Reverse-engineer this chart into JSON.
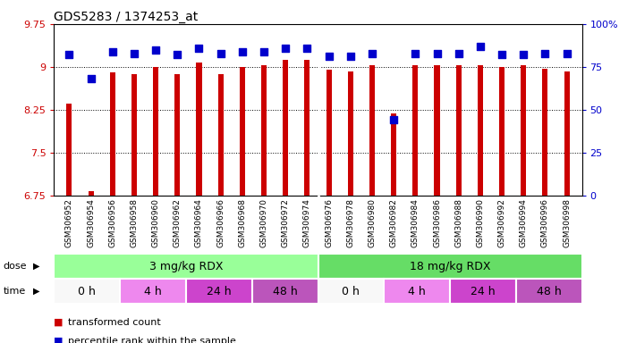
{
  "title": "GDS5283 / 1374253_at",
  "samples": [
    "GSM306952",
    "GSM306954",
    "GSM306956",
    "GSM306958",
    "GSM306960",
    "GSM306962",
    "GSM306964",
    "GSM306966",
    "GSM306968",
    "GSM306970",
    "GSM306972",
    "GSM306974",
    "GSM306976",
    "GSM306978",
    "GSM306980",
    "GSM306982",
    "GSM306984",
    "GSM306986",
    "GSM306988",
    "GSM306990",
    "GSM306992",
    "GSM306994",
    "GSM306996",
    "GSM306998"
  ],
  "transformed_count": [
    8.35,
    6.82,
    8.9,
    8.88,
    9.0,
    8.88,
    9.08,
    8.88,
    9.0,
    9.03,
    9.12,
    9.12,
    8.95,
    8.92,
    9.03,
    8.18,
    9.03,
    9.03,
    9.03,
    9.03,
    9.0,
    9.03,
    8.97,
    8.92
  ],
  "percentile_rank": [
    82,
    68,
    84,
    83,
    85,
    82,
    86,
    83,
    84,
    84,
    86,
    86,
    81,
    81,
    83,
    44,
    83,
    83,
    83,
    87,
    82,
    82,
    83,
    83
  ],
  "ylim_left": [
    6.75,
    9.75
  ],
  "ylim_right": [
    0,
    100
  ],
  "yticks_left": [
    6.75,
    7.5,
    8.25,
    9.0,
    9.75
  ],
  "ytick_labels_left": [
    "6.75",
    "7.5",
    "8.25",
    "9",
    "9.75"
  ],
  "yticks_right": [
    0,
    25,
    50,
    75,
    100
  ],
  "ytick_labels_right": [
    "0",
    "25",
    "50",
    "75",
    "100%"
  ],
  "bar_color": "#cc0000",
  "dot_color": "#0000cc",
  "background_plot": "#ffffff",
  "background_fig": "#ffffff",
  "label_band_color": "#d3d3d3",
  "dose_groups": [
    {
      "label": "3 mg/kg RDX",
      "start": 0,
      "end": 12,
      "color": "#99ff99"
    },
    {
      "label": "18 mg/kg RDX",
      "start": 12,
      "end": 24,
      "color": "#66dd66"
    }
  ],
  "time_groups": [
    {
      "label": "0 h",
      "start": 0,
      "end": 3,
      "color": "#f8f8f8"
    },
    {
      "label": "4 h",
      "start": 3,
      "end": 6,
      "color": "#ee88ee"
    },
    {
      "label": "24 h",
      "start": 6,
      "end": 9,
      "color": "#cc44cc"
    },
    {
      "label": "48 h",
      "start": 9,
      "end": 12,
      "color": "#bb55bb"
    },
    {
      "label": "0 h",
      "start": 12,
      "end": 15,
      "color": "#f8f8f8"
    },
    {
      "label": "4 h",
      "start": 15,
      "end": 18,
      "color": "#ee88ee"
    },
    {
      "label": "24 h",
      "start": 18,
      "end": 21,
      "color": "#cc44cc"
    },
    {
      "label": "48 h",
      "start": 21,
      "end": 24,
      "color": "#bb55bb"
    }
  ],
  "legend_items": [
    {
      "label": "transformed count",
      "color": "#cc0000"
    },
    {
      "label": "percentile rank within the sample",
      "color": "#0000cc"
    }
  ],
  "gridline_color": "#000000",
  "gridline_style": "dotted",
  "bar_width": 0.25,
  "dot_size": 30,
  "dose_label": "dose",
  "time_label": "time"
}
